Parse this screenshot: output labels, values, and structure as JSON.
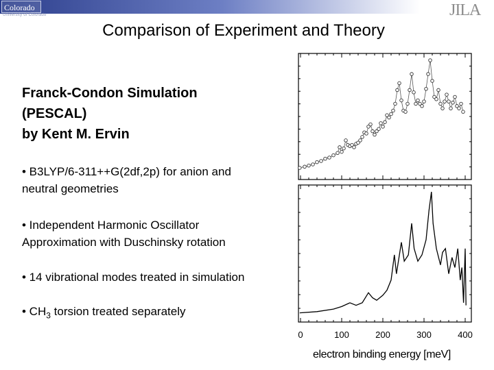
{
  "header": {
    "left_logo_text": "Colorado",
    "left_logo_subtext": "University of Colorado",
    "right_logo_text": "JILA"
  },
  "slide": {
    "title": "Comparison of Experiment and Theory",
    "heading": "Franck-Condon Simulation\n(PESCAL)\nby Kent M. Ervin",
    "bullets": [
      "• B3LYP/6-311++G(2df,2p) for anion and\n neutral geometries",
      "• Independent Harmonic Oscillator\n Approximation with Duschinsky rotation",
      "• 14 vibrational modes treated in simulation"
    ],
    "bullet_ch3": {
      "prefix": "• CH",
      "subscript": "3",
      "suffix": " torsion treated separately"
    }
  },
  "chart_data": {
    "type": "line",
    "xlabel": "electron binding energy [meV]",
    "xlim": [
      -5,
      415
    ],
    "xticks": [
      0,
      100,
      200,
      300,
      400
    ],
    "panels": [
      {
        "name": "",
        "style": "markers",
        "points": [
          [
            -2,
            0.06
          ],
          [
            10,
            0.07
          ],
          [
            20,
            0.08
          ],
          [
            30,
            0.09
          ],
          [
            40,
            0.11
          ],
          [
            50,
            0.12
          ],
          [
            60,
            0.14
          ],
          [
            70,
            0.15
          ],
          [
            80,
            0.17
          ],
          [
            90,
            0.19
          ],
          [
            95,
            0.24
          ],
          [
            100,
            0.2
          ],
          [
            105,
            0.23
          ],
          [
            110,
            0.3
          ],
          [
            115,
            0.26
          ],
          [
            120,
            0.25
          ],
          [
            125,
            0.26
          ],
          [
            130,
            0.24
          ],
          [
            135,
            0.27
          ],
          [
            140,
            0.28
          ],
          [
            145,
            0.3
          ],
          [
            150,
            0.33
          ],
          [
            155,
            0.37
          ],
          [
            160,
            0.36
          ],
          [
            165,
            0.42
          ],
          [
            170,
            0.44
          ],
          [
            175,
            0.38
          ],
          [
            180,
            0.35
          ],
          [
            185,
            0.38
          ],
          [
            190,
            0.4
          ],
          [
            195,
            0.45
          ],
          [
            200,
            0.42
          ],
          [
            205,
            0.46
          ],
          [
            210,
            0.52
          ],
          [
            215,
            0.5
          ],
          [
            220,
            0.53
          ],
          [
            225,
            0.56
          ],
          [
            230,
            0.62
          ],
          [
            235,
            0.74
          ],
          [
            240,
            0.8
          ],
          [
            245,
            0.65
          ],
          [
            250,
            0.56
          ],
          [
            255,
            0.55
          ],
          [
            260,
            0.62
          ],
          [
            265,
            0.74
          ],
          [
            270,
            0.88
          ],
          [
            275,
            0.72
          ],
          [
            280,
            0.62
          ],
          [
            285,
            0.65
          ],
          [
            290,
            0.62
          ],
          [
            295,
            0.6
          ],
          [
            300,
            0.64
          ],
          [
            305,
            0.75
          ],
          [
            310,
            0.88
          ],
          [
            315,
            1.0
          ],
          [
            320,
            0.82
          ],
          [
            325,
            0.68
          ],
          [
            330,
            0.66
          ],
          [
            335,
            0.74
          ],
          [
            340,
            0.62
          ],
          [
            345,
            0.58
          ],
          [
            350,
            0.64
          ],
          [
            355,
            0.7
          ],
          [
            360,
            0.64
          ],
          [
            365,
            0.58
          ],
          [
            370,
            0.63
          ],
          [
            375,
            0.68
          ],
          [
            380,
            0.6
          ],
          [
            385,
            0.58
          ],
          [
            390,
            0.62
          ],
          [
            395,
            0.55
          ]
        ]
      },
      {
        "name": "",
        "style": "line",
        "points": [
          [
            -2,
            0.04
          ],
          [
            40,
            0.05
          ],
          [
            80,
            0.07
          ],
          [
            100,
            0.09
          ],
          [
            120,
            0.12
          ],
          [
            135,
            0.1
          ],
          [
            150,
            0.12
          ],
          [
            165,
            0.2
          ],
          [
            175,
            0.16
          ],
          [
            185,
            0.14
          ],
          [
            200,
            0.18
          ],
          [
            210,
            0.22
          ],
          [
            220,
            0.3
          ],
          [
            228,
            0.5
          ],
          [
            233,
            0.35
          ],
          [
            245,
            0.6
          ],
          [
            252,
            0.45
          ],
          [
            262,
            0.5
          ],
          [
            270,
            0.75
          ],
          [
            276,
            0.55
          ],
          [
            285,
            0.45
          ],
          [
            295,
            0.5
          ],
          [
            305,
            0.62
          ],
          [
            312,
            0.85
          ],
          [
            318,
            1.0
          ],
          [
            322,
            0.75
          ],
          [
            330,
            0.55
          ],
          [
            340,
            0.42
          ],
          [
            345,
            0.52
          ],
          [
            352,
            0.55
          ],
          [
            360,
            0.35
          ],
          [
            368,
            0.48
          ],
          [
            375,
            0.4
          ],
          [
            382,
            0.55
          ],
          [
            388,
            0.3
          ],
          [
            392,
            0.4
          ],
          [
            396,
            0.12
          ],
          [
            400,
            0.55
          ],
          [
            402,
            0.1
          ]
        ]
      }
    ]
  }
}
